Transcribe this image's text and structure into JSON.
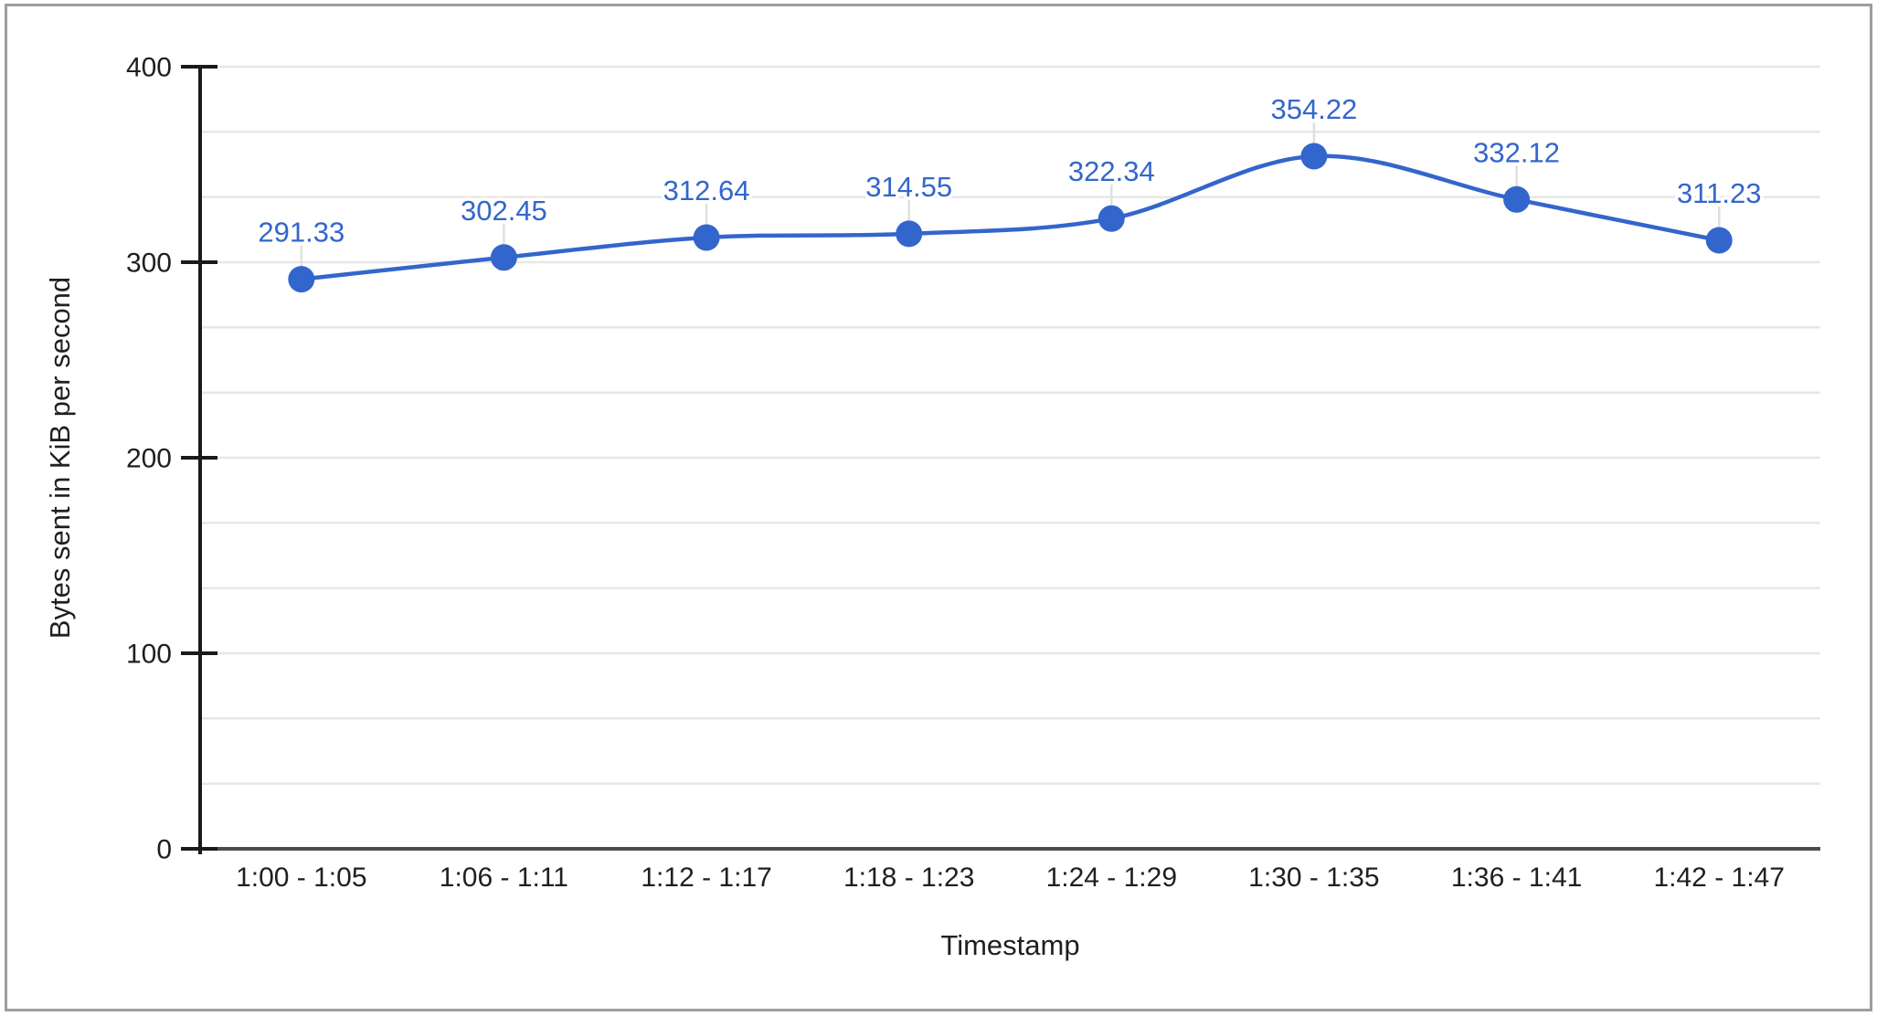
{
  "chart_data": {
    "type": "line",
    "xlabel": "Timestamp",
    "ylabel": "Bytes sent in KiB per second",
    "categories": [
      "1:00 - 1:05",
      "1:06 - 1:11",
      "1:12 - 1:17",
      "1:18 - 1:23",
      "1:24 - 1:29",
      "1:30 - 1:35",
      "1:36 - 1:41",
      "1:42 - 1:47"
    ],
    "values": [
      291.33,
      302.45,
      312.64,
      314.55,
      322.34,
      354.22,
      332.12,
      311.23
    ],
    "data_labels": [
      "291.33",
      "302.45",
      "312.64",
      "314.55",
      "322.34",
      "354.22",
      "332.12",
      "311.23"
    ],
    "ylim": [
      0,
      400
    ],
    "yticks": [
      0,
      100,
      200,
      300,
      400
    ],
    "minor_gridlines_between_majors": 2,
    "grid": true,
    "legend": "none",
    "smooth_line": true,
    "colors": {
      "series": "#3366cc",
      "data_label": "#3366cc",
      "gridline": "#e7e7e7",
      "baseline": "#4d4d4d",
      "axis_line": "#1a1a1a",
      "tick_text": "#1f1f1f",
      "axis_title_text": "#1f1f1f",
      "leader_line": "#e0e0e0",
      "background": "#ffffff",
      "frame_border": "#9e9e9e"
    }
  }
}
